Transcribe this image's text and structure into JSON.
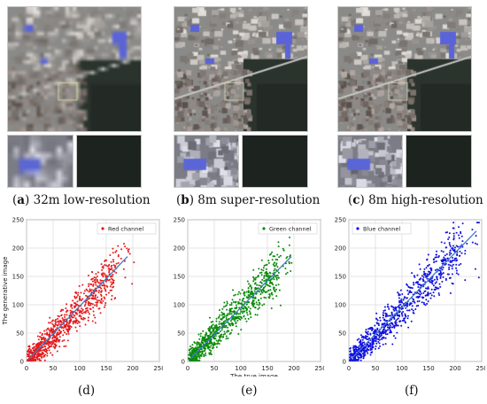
{
  "top_panels": [
    {
      "letter": "a",
      "caption": " 32m low-resolution",
      "style": "low"
    },
    {
      "letter": "b",
      "caption": " 8m super-resolution",
      "style": "super"
    },
    {
      "letter": "c",
      "caption": " 8m high-resolution",
      "style": "high"
    }
  ],
  "chart_data": [
    {
      "type": "scatter",
      "panel_label": "(d)",
      "legend": "Red channel",
      "legend_position": "top-right",
      "color": "#e41a1c",
      "xlim": [
        0,
        250
      ],
      "ylim": [
        0,
        250
      ],
      "xticks": [
        0,
        50,
        100,
        150,
        200,
        250
      ],
      "yticks": [
        0,
        50,
        100,
        150,
        200,
        250
      ],
      "xlabel": "",
      "ylabel": "The generative image",
      "grid": true,
      "point_range": [
        5,
        195
      ],
      "fit_line": {
        "x": [
          5,
          190
        ],
        "y": [
          5,
          185
        ]
      }
    },
    {
      "type": "scatter",
      "panel_label": "(e)",
      "legend": "Green channel",
      "legend_position": "top-right",
      "color": "#0a8a0a",
      "xlim": [
        0,
        250
      ],
      "ylim": [
        0,
        250
      ],
      "xticks": [
        0,
        50,
        100,
        150,
        200,
        250
      ],
      "yticks": [
        0,
        50,
        100,
        150,
        200,
        250
      ],
      "xlabel": "The true image",
      "ylabel": "",
      "grid": true,
      "point_range": [
        5,
        200
      ],
      "fit_line": {
        "x": [
          5,
          195
        ],
        "y": [
          5,
          185
        ]
      }
    },
    {
      "type": "scatter",
      "panel_label": "(f)",
      "legend": "Blue channel",
      "legend_position": "top-left",
      "color": "#1010e0",
      "xlim": [
        0,
        250
      ],
      "ylim": [
        0,
        250
      ],
      "xticks": [
        0,
        50,
        100,
        150,
        200,
        250
      ],
      "yticks": [
        0,
        50,
        100,
        150,
        200,
        250
      ],
      "xlabel": "",
      "ylabel": "",
      "grid": true,
      "point_range": [
        5,
        245
      ],
      "fit_line": {
        "x": [
          5,
          240
        ],
        "y": [
          5,
          230
        ]
      }
    }
  ]
}
